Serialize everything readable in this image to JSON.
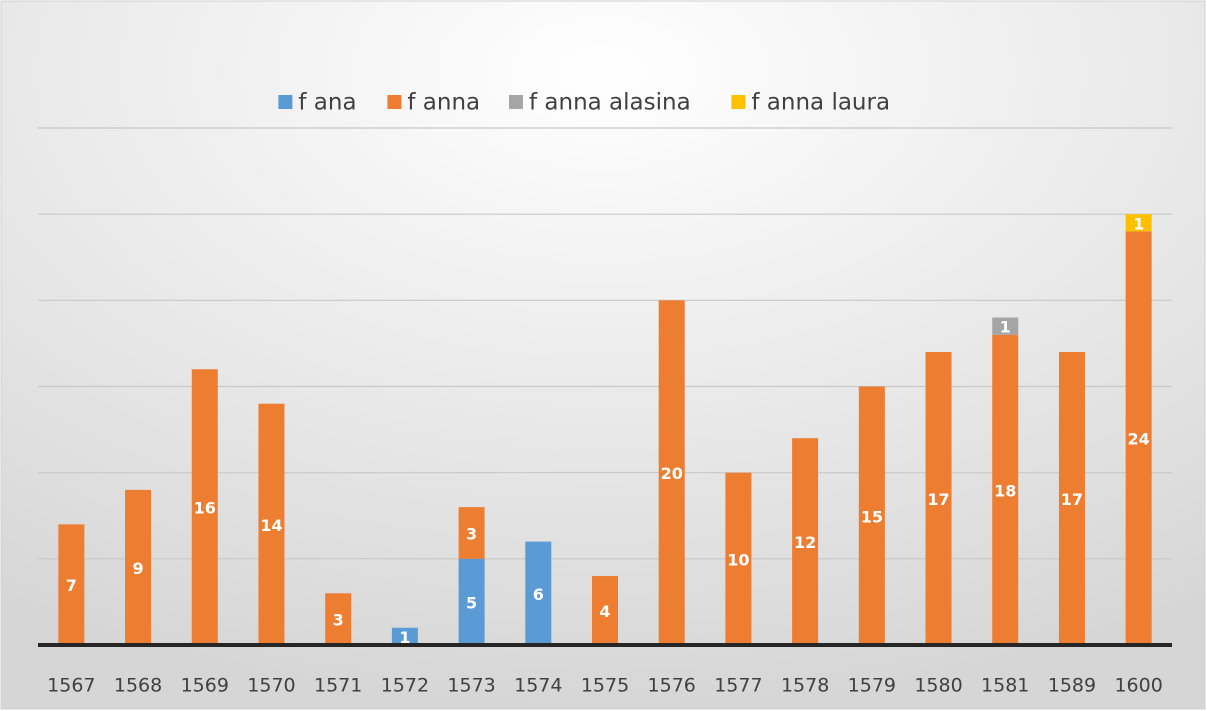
{
  "chart_data": {
    "type": "stacked_bar",
    "categories": [
      "1567",
      "1568",
      "1569",
      "1570",
      "1571",
      "1572",
      "1573",
      "1574",
      "1575",
      "1576",
      "1577",
      "1578",
      "1579",
      "1580",
      "1581",
      "1589",
      "1600"
    ],
    "series": [
      {
        "name": "f ana",
        "color": "#5b9bd5",
        "values": [
          null,
          null,
          null,
          null,
          null,
          1,
          5,
          6,
          null,
          null,
          null,
          null,
          null,
          null,
          null,
          null,
          null
        ]
      },
      {
        "name": "f anna",
        "color": "#ed7d31",
        "values": [
          7,
          9,
          16,
          14,
          3,
          null,
          3,
          null,
          4,
          20,
          10,
          12,
          15,
          17,
          18,
          17,
          24
        ]
      },
      {
        "name": "f anna alasina",
        "color": "#a5a5a5",
        "values": [
          null,
          null,
          null,
          null,
          null,
          null,
          null,
          null,
          null,
          null,
          null,
          null,
          null,
          null,
          1,
          null,
          null
        ]
      },
      {
        "name": "f anna laura",
        "color": "#ffc000",
        "values": [
          null,
          null,
          null,
          null,
          null,
          null,
          null,
          null,
          null,
          null,
          null,
          null,
          null,
          null,
          null,
          null,
          1
        ]
      }
    ],
    "ylim": [
      0,
      30
    ],
    "yticks": [
      0,
      5,
      10,
      15,
      20,
      25,
      30
    ],
    "grid": true,
    "legend": "top"
  }
}
